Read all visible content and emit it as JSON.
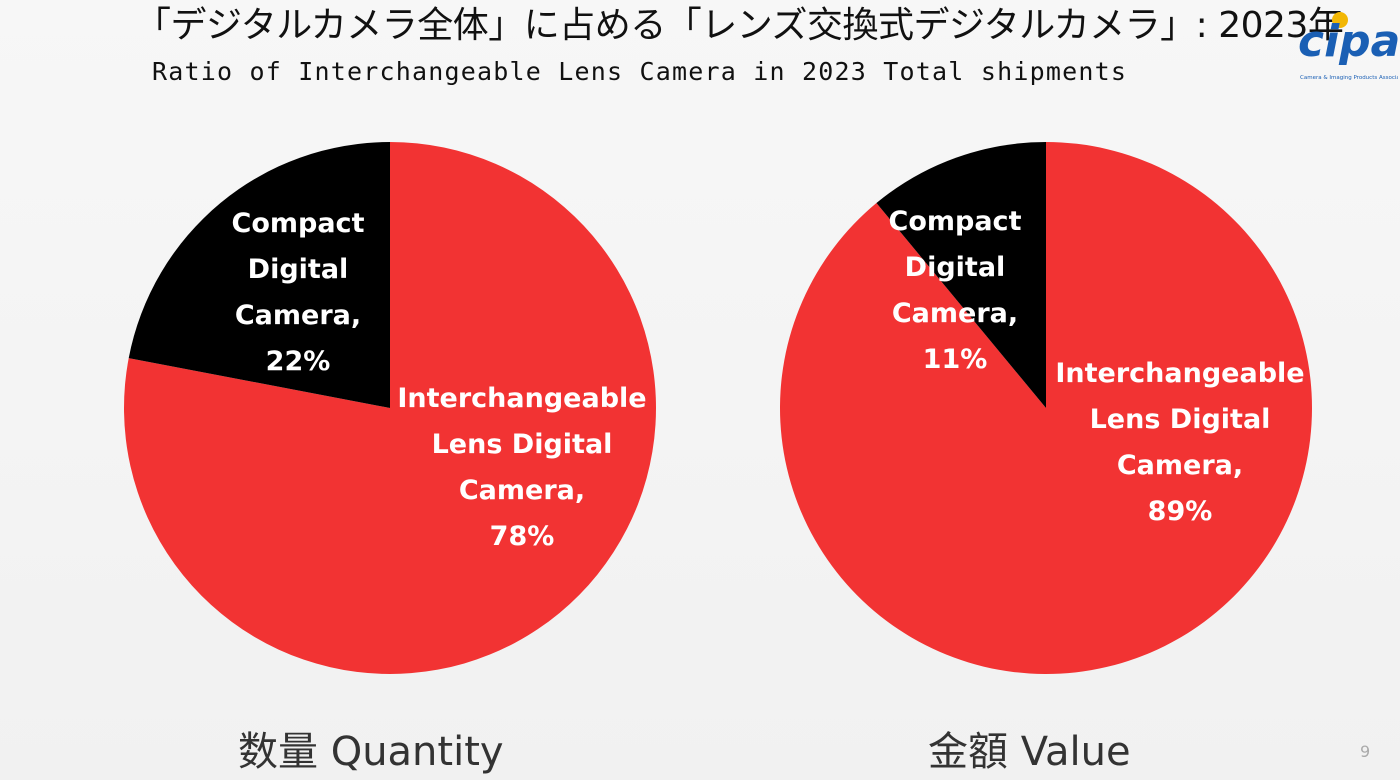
{
  "slide": {
    "title_jp": "「デジタルカメラ全体」に占める「レンズ交換式デジタルカメラ」: 2023年",
    "title_en": "Ratio of Interchangeable Lens Camera in 2023 Total shipments",
    "page_number": "9"
  },
  "logo": {
    "text": "CIPA",
    "subtitle": "Camera & Imaging Products Association",
    "color": "#1a5fb4",
    "accent": "#f2b705"
  },
  "colors": {
    "ilc": "#f23333",
    "compact": "#000000",
    "label_on_red": "#ffffff",
    "label_on_black": "#ffffff"
  },
  "chart_data": [
    {
      "type": "pie",
      "caption": "数量 Quantity",
      "start": "12 o'clock, clockwise",
      "slices": [
        {
          "name": "Interchangeable Lens Digital Camera",
          "value": 78,
          "label_lines": [
            "Interchangeable",
            "Lens Digital",
            "Camera,",
            "78%"
          ],
          "color": "#f23333"
        },
        {
          "name": "Compact Digital Camera",
          "value": 22,
          "label_lines": [
            "Compact",
            "Digital",
            "Camera,",
            "22%"
          ],
          "color": "#000000"
        }
      ]
    },
    {
      "type": "pie",
      "caption": "金額  Value",
      "start": "12 o'clock, clockwise",
      "slices": [
        {
          "name": "Interchangeable Lens Digital Camera",
          "value": 89,
          "label_lines": [
            "Interchangeable",
            "Lens Digital",
            "Camera,",
            "89%"
          ],
          "color": "#f23333"
        },
        {
          "name": "Compact Digital Camera",
          "value": 11,
          "label_lines": [
            "Compact",
            "Digital",
            "Camera,",
            "11%"
          ],
          "color": "#000000"
        }
      ]
    }
  ]
}
